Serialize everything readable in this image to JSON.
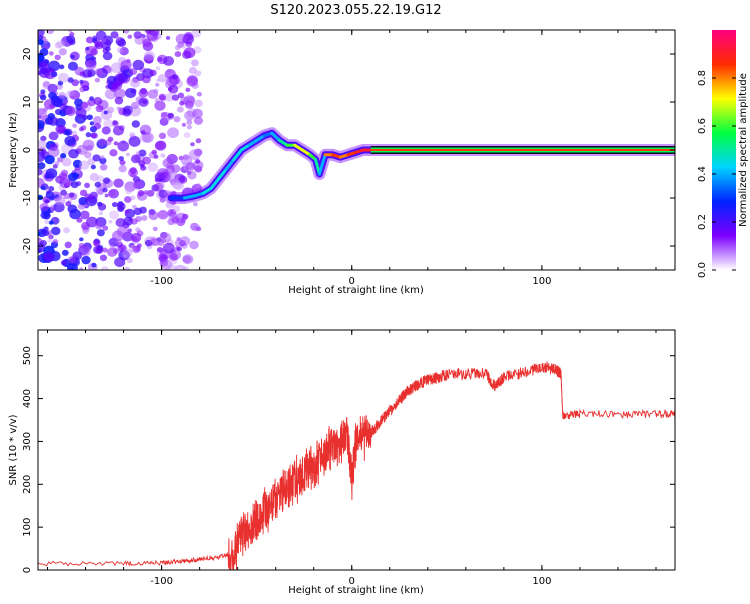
{
  "title": "S120.2023.055.22.19.G12",
  "colors": {
    "snr_line": "#e8312f",
    "colormap": [
      "#ffffff",
      "#7b00ff",
      "#0022ff",
      "#00d4ff",
      "#00ff40",
      "#ffff00",
      "#ff2a00",
      "#ff0080"
    ]
  },
  "chart_data": [
    {
      "type": "heatmap",
      "title": "S120.2023.055.22.19.G12",
      "xlabel": "Height of straight line (km)",
      "ylabel": "Frequency (Hz)",
      "xlim": [
        -165,
        170
      ],
      "ylim": [
        -25,
        25
      ],
      "xticks": [
        -100,
        0,
        100
      ],
      "yticks": [
        -20,
        -10,
        0,
        10,
        20
      ],
      "colorbar": {
        "label": "Normalized spectral amplitude",
        "range": [
          0,
          1
        ],
        "ticks": [
          "0.0",
          "0.2",
          "0.4",
          "0.6",
          "0.8"
        ]
      },
      "ridge": {
        "x": [
          -95,
          -88,
          -82,
          -78,
          -74,
          -70,
          -66,
          -62,
          -58,
          -54,
          -50,
          -46,
          -42,
          -38,
          -34,
          -30,
          -26,
          -22,
          -19,
          -17,
          -14,
          -10,
          -6,
          -2,
          2,
          6,
          10,
          170
        ],
        "y": [
          -10,
          -10,
          -9.5,
          -9,
          -8,
          -6,
          -4,
          -2,
          0,
          1,
          2,
          3,
          3.5,
          2,
          1,
          1,
          0,
          -1,
          -2,
          -5,
          -1,
          -1,
          -1.5,
          -1,
          -0.5,
          0,
          0,
          0
        ],
        "amplitude": [
          0.3,
          0.4,
          0.4,
          0.45,
          0.45,
          0.45,
          0.4,
          0.45,
          0.45,
          0.4,
          0.4,
          0.35,
          0.4,
          0.5,
          0.6,
          0.7,
          0.7,
          0.6,
          0.5,
          0.4,
          0.8,
          0.85,
          0.8,
          0.85,
          0.9,
          0.9,
          0.9,
          0.9
        ]
      },
      "noise_region": {
        "x": [
          -165,
          -80
        ],
        "y": [
          -25,
          25
        ],
        "amplitude": [
          0.05,
          0.3
        ]
      }
    },
    {
      "type": "line",
      "xlabel": "Height of straight line (km)",
      "ylabel": "SNR (10 * v/v)",
      "xlim": [
        -165,
        170
      ],
      "ylim": [
        0,
        560
      ],
      "xticks": [
        -100,
        0,
        100
      ],
      "yticks": [
        0,
        100,
        200,
        300,
        400,
        500
      ],
      "series": [
        {
          "x": [
            -165,
            -120,
            -100,
            -90,
            -80,
            -70,
            -62,
            -58,
            -54,
            -50,
            -46,
            -42,
            -38,
            -34,
            -30,
            -26,
            -22,
            -18,
            -14,
            -10,
            -6,
            -2,
            0,
            2,
            6,
            10,
            14,
            18,
            22,
            26,
            30,
            34,
            38,
            42,
            46,
            50,
            60,
            70,
            75,
            80,
            90,
            100,
            105,
            108,
            110,
            111,
            112,
            120,
            140,
            160,
            170
          ],
          "y": [
            15,
            15,
            17,
            20,
            25,
            30,
            40,
            80,
            100,
            120,
            140,
            150,
            180,
            190,
            210,
            220,
            240,
            250,
            270,
            290,
            300,
            310,
            200,
            300,
            310,
            320,
            340,
            360,
            380,
            400,
            420,
            430,
            440,
            445,
            450,
            455,
            458,
            460,
            430,
            450,
            460,
            475,
            470,
            465,
            460,
            360,
            360,
            365,
            362,
            365,
            365
          ]
        }
      ]
    }
  ]
}
